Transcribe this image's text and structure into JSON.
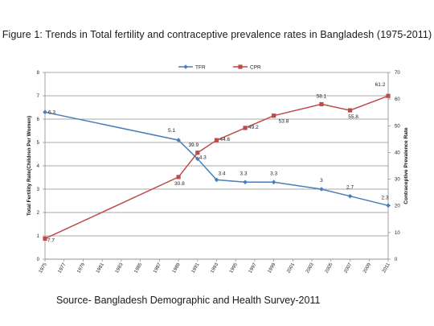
{
  "figure_title": "Figure 1: Trends in Total fertility and contraceptive prevalence rates in Bangladesh (1975-2011)",
  "source": "Source- Bangladesh Demographic and Health Survey-2011",
  "chart_data": {
    "type": "line",
    "title": "",
    "ylabel": "Total Fertility Rate(Children Per Women)",
    "y2label": "Contraceptive Prevalence Rate",
    "xlim": [
      1975,
      2011
    ],
    "ylim": [
      0,
      8
    ],
    "y2lim": [
      0,
      70
    ],
    "x_ticks": [
      "1975",
      "1977",
      "1979",
      "1981",
      "1983",
      "1985",
      "1987",
      "1989",
      "1991",
      "1993",
      "1995",
      "1997",
      "1999",
      "2001",
      "2003",
      "2005",
      "2007",
      "2009",
      "2011"
    ],
    "y_ticks": [
      "0",
      "1",
      "2",
      "3",
      "4",
      "5",
      "6",
      "7",
      "8"
    ],
    "y2_ticks": [
      "0",
      "10",
      "20",
      "30",
      "40",
      "50",
      "60",
      "70"
    ],
    "grid": true,
    "legend_position": "top-center",
    "series": [
      {
        "name": "TFR",
        "axis": "left",
        "color": "#4a7ebb",
        "marker": "diamond",
        "points": [
          {
            "x": 1975,
            "y": 6.3,
            "label": "6.3"
          },
          {
            "x": 1989,
            "y": 5.1,
            "label": "5.1"
          },
          {
            "x": 1991,
            "y": 4.3,
            "label": "4.3"
          },
          {
            "x": 1993,
            "y": 3.4,
            "label": "3.4"
          },
          {
            "x": 1996,
            "y": 3.3,
            "label": "3.3"
          },
          {
            "x": 1999,
            "y": 3.3,
            "label": "3.3"
          },
          {
            "x": 2004,
            "y": 3.0,
            "label": "3"
          },
          {
            "x": 2007,
            "y": 2.7,
            "label": "2.7"
          },
          {
            "x": 2011,
            "y": 2.3,
            "label": "2.3"
          }
        ]
      },
      {
        "name": "CPR",
        "axis": "right",
        "color": "#be4b48",
        "marker": "square",
        "points": [
          {
            "x": 1975,
            "y": 7.7,
            "label": "7.7"
          },
          {
            "x": 1989,
            "y": 30.8,
            "label": "30.8"
          },
          {
            "x": 1991,
            "y": 39.9,
            "label": "39.9"
          },
          {
            "x": 1993,
            "y": 44.6,
            "label": "44.6"
          },
          {
            "x": 1996,
            "y": 49.2,
            "label": "49.2"
          },
          {
            "x": 1999,
            "y": 53.8,
            "label": "53.8"
          },
          {
            "x": 2004,
            "y": 58.1,
            "label": "58.1"
          },
          {
            "x": 2007,
            "y": 55.8,
            "label": "55.8"
          },
          {
            "x": 2011,
            "y": 61.2,
            "label": "61.2"
          }
        ]
      }
    ]
  }
}
